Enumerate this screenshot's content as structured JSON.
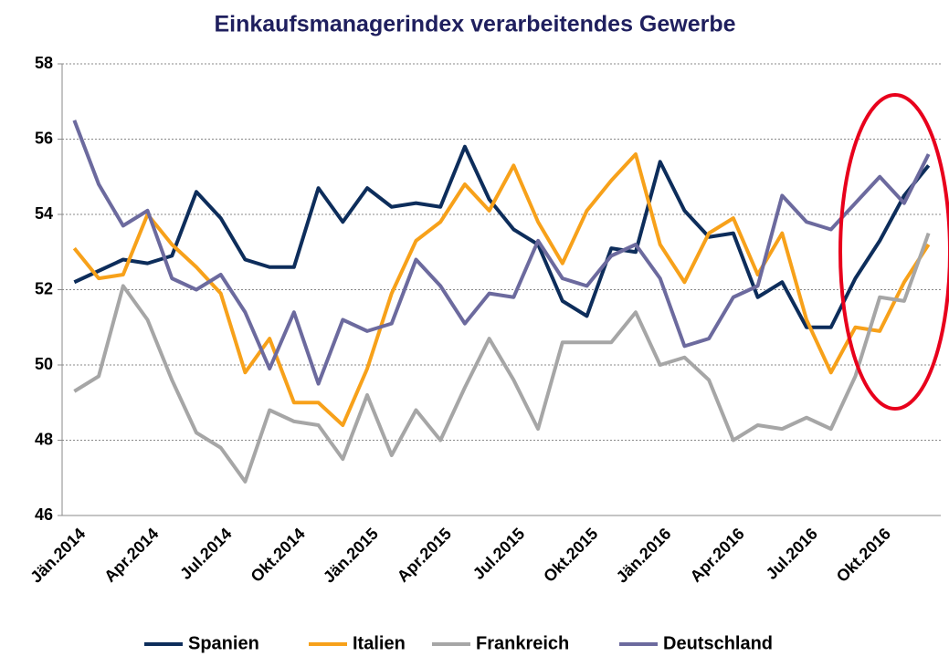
{
  "chart_data": {
    "type": "line",
    "title": "Einkaufsmanagerindex verarbeitendes Gewerbe",
    "categories": [
      "Jän.2014",
      null,
      null,
      "Apr.2014",
      null,
      null,
      "Jul.2014",
      null,
      null,
      "Okt.2014",
      null,
      null,
      "Jän.2015",
      null,
      null,
      "Apr.2015",
      null,
      null,
      "Jul.2015",
      null,
      null,
      "Okt.2015",
      null,
      null,
      "Jän.2016",
      null,
      null,
      "Apr.2016",
      null,
      null,
      "Jul.2016",
      null,
      null,
      "Okt.2016",
      null,
      null
    ],
    "series": [
      {
        "name": "Spanien",
        "color": "#0d2d5b",
        "values": [
          52.2,
          52.5,
          52.8,
          52.7,
          52.9,
          54.6,
          53.9,
          52.8,
          52.6,
          52.6,
          54.7,
          53.8,
          54.7,
          54.2,
          54.3,
          54.2,
          55.8,
          54.4,
          53.6,
          53.2,
          51.7,
          51.3,
          53.1,
          53.0,
          55.4,
          54.1,
          53.4,
          53.5,
          51.8,
          52.2,
          51.0,
          51.0,
          52.3,
          53.3,
          54.5,
          55.3
        ]
      },
      {
        "name": "Italien",
        "color": "#f7a11a",
        "values": [
          53.1,
          52.3,
          52.4,
          54.0,
          53.2,
          52.6,
          51.9,
          49.8,
          50.7,
          49.0,
          49.0,
          48.4,
          49.9,
          51.9,
          53.3,
          53.8,
          54.8,
          54.1,
          55.3,
          53.8,
          52.7,
          54.1,
          54.9,
          55.6,
          53.2,
          52.2,
          53.5,
          53.9,
          52.4,
          53.5,
          51.2,
          49.8,
          51.0,
          50.9,
          52.2,
          53.2
        ]
      },
      {
        "name": "Frankreich",
        "color": "#a6a6a6",
        "values": [
          49.3,
          49.7,
          52.1,
          51.2,
          49.6,
          48.2,
          47.8,
          46.9,
          48.8,
          48.5,
          48.4,
          47.5,
          49.2,
          47.6,
          48.8,
          48.0,
          49.4,
          50.7,
          49.6,
          48.3,
          50.6,
          50.6,
          50.6,
          51.4,
          50.0,
          50.2,
          49.6,
          48.0,
          48.4,
          48.3,
          48.6,
          48.3,
          49.7,
          51.8,
          51.7,
          53.5
        ]
      },
      {
        "name": "Deutschland",
        "color": "#6c6a9e",
        "values": [
          56.5,
          54.8,
          53.7,
          54.1,
          52.3,
          52.0,
          52.4,
          51.4,
          49.9,
          51.4,
          49.5,
          51.2,
          50.9,
          51.1,
          52.8,
          52.1,
          51.1,
          51.9,
          51.8,
          53.3,
          52.3,
          52.1,
          52.9,
          53.2,
          52.3,
          50.5,
          50.7,
          51.8,
          52.1,
          54.5,
          53.8,
          53.6,
          54.3,
          55.0,
          54.3,
          55.6
        ]
      }
    ],
    "ylim": [
      46,
      58
    ],
    "yticks": [
      46,
      48,
      50,
      52,
      54,
      56,
      58
    ],
    "grid": true,
    "legend": "bottom"
  }
}
